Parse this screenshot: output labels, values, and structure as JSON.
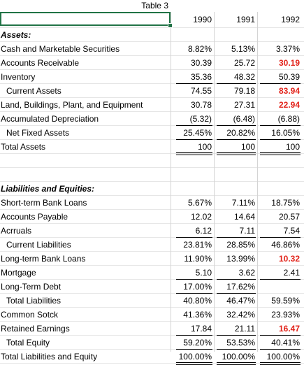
{
  "title": "Table 3",
  "years": [
    "1990",
    "1991",
    "1992"
  ],
  "rows": [
    {
      "label": "Assets:",
      "style": "section",
      "values": [
        "",
        "",
        ""
      ],
      "red": [
        false,
        false,
        false
      ],
      "rule": ""
    },
    {
      "label": "Cash and Marketable Securities",
      "style": "",
      "values": [
        "8.82%",
        "5.13%",
        "3.37%"
      ],
      "red": [
        false,
        false,
        false
      ],
      "rule": ""
    },
    {
      "label": "Accounts Receivable",
      "style": "",
      "values": [
        "30.39",
        "25.72",
        "30.19"
      ],
      "red": [
        false,
        false,
        true
      ],
      "rule": ""
    },
    {
      "label": "Inventory",
      "style": "",
      "values": [
        "35.36",
        "48.32",
        "50.39"
      ],
      "red": [
        false,
        false,
        false
      ],
      "rule": "below"
    },
    {
      "label": "Current Assets",
      "style": "indent",
      "values": [
        "74.55",
        "79.18",
        "83.94"
      ],
      "red": [
        false,
        false,
        true
      ],
      "rule": ""
    },
    {
      "label": "Land, Buildings, Plant, and Equipment",
      "style": "",
      "values": [
        "30.78",
        "27.31",
        "22.94"
      ],
      "red": [
        false,
        false,
        true
      ],
      "rule": ""
    },
    {
      "label": "Accumulated Depreciation",
      "style": "",
      "values": [
        "(5.32)",
        "(6.48)",
        "(6.88)"
      ],
      "red": [
        false,
        false,
        false
      ],
      "rule": "below"
    },
    {
      "label": "Net Fixed Assets",
      "style": "indent",
      "values": [
        "25.45%",
        "20.82%",
        "16.05%"
      ],
      "red": [
        false,
        false,
        false
      ],
      "rule": "below"
    },
    {
      "label": "Total Assets",
      "style": "",
      "values": [
        "100",
        "100",
        "100"
      ],
      "red": [
        false,
        false,
        false
      ],
      "rule": "double"
    },
    {
      "label": "",
      "style": "",
      "values": [
        "",
        "",
        ""
      ],
      "red": [
        false,
        false,
        false
      ],
      "rule": ""
    },
    {
      "label": "",
      "style": "",
      "values": [
        "",
        "",
        ""
      ],
      "red": [
        false,
        false,
        false
      ],
      "rule": ""
    },
    {
      "label": "Liabilities and Equities:",
      "style": "section",
      "values": [
        "",
        "",
        ""
      ],
      "red": [
        false,
        false,
        false
      ],
      "rule": ""
    },
    {
      "label": "Short-term Bank Loans",
      "style": "",
      "values": [
        "5.67%",
        "7.11%",
        "18.75%"
      ],
      "red": [
        false,
        false,
        false
      ],
      "rule": ""
    },
    {
      "label": "Accounts Payable",
      "style": "",
      "values": [
        "12.02",
        "14.64",
        "20.57"
      ],
      "red": [
        false,
        false,
        false
      ],
      "rule": ""
    },
    {
      "label": "Acrruals",
      "style": "",
      "values": [
        "6.12",
        "7.11",
        "7.54"
      ],
      "red": [
        false,
        false,
        false
      ],
      "rule": "below"
    },
    {
      "label": "Current Liabilities",
      "style": "indent",
      "values": [
        "23.81%",
        "28.85%",
        "46.86%"
      ],
      "red": [
        false,
        false,
        false
      ],
      "rule": ""
    },
    {
      "label": "Long-term Bank Loans",
      "style": "",
      "values": [
        "11.90%",
        "13.99%",
        "10.32"
      ],
      "red": [
        false,
        false,
        true
      ],
      "rule": ""
    },
    {
      "label": "Mortgage",
      "style": "",
      "values": [
        "5.10",
        "3.62",
        "2.41"
      ],
      "red": [
        false,
        false,
        false
      ],
      "rule": "below"
    },
    {
      "label": "Long-Term Debt",
      "style": "",
      "values": [
        "17.00%",
        "17.62%",
        ""
      ],
      "red": [
        false,
        false,
        false
      ],
      "rule": "below"
    },
    {
      "label": "Total Liabilities",
      "style": "indent",
      "values": [
        "40.80%",
        "46.47%",
        "59.59%"
      ],
      "red": [
        false,
        false,
        false
      ],
      "rule": ""
    },
    {
      "label": "Common Sotck",
      "style": "",
      "values": [
        "41.36%",
        "32.42%",
        "23.93%"
      ],
      "red": [
        false,
        false,
        false
      ],
      "rule": ""
    },
    {
      "label": "Retained Earnings",
      "style": "",
      "values": [
        "17.84",
        "21.11",
        "16.47"
      ],
      "red": [
        false,
        false,
        true
      ],
      "rule": "below"
    },
    {
      "label": "Total Equity",
      "style": "indent",
      "values": [
        "59.20%",
        "53.53%",
        "40.41%"
      ],
      "red": [
        false,
        false,
        false
      ],
      "rule": "below"
    },
    {
      "label": "Total Liabilities and Equity",
      "style": "",
      "values": [
        "100.00%",
        "100.00%",
        "100.00%"
      ],
      "red": [
        false,
        false,
        false
      ],
      "rule": "double"
    }
  ],
  "colors": {
    "red_text": "#e2231a",
    "selection": "#217346"
  }
}
